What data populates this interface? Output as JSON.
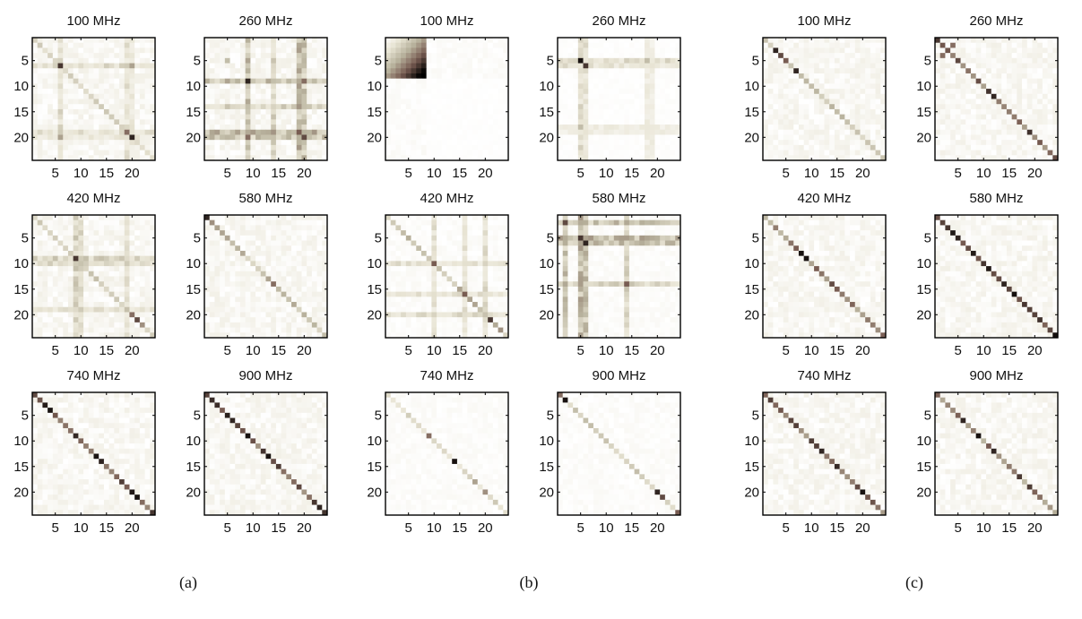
{
  "chart_data": {
    "type": "heatmap",
    "matrix_size": 24,
    "tick_labels": [
      "5",
      "10",
      "15",
      "20"
    ],
    "tick_values": [
      5,
      10,
      15,
      20
    ],
    "colormap": {
      "low": "#ffffff",
      "mid": "#b9b39e",
      "high": "#000000"
    },
    "groups": [
      {
        "label": "(a)",
        "panels": [
          {
            "title": "100 MHz",
            "pattern": "a100"
          },
          {
            "title": "260 MHz",
            "pattern": "a260"
          },
          {
            "title": "420 MHz",
            "pattern": "a420"
          },
          {
            "title": "580 MHz",
            "pattern": "a580"
          },
          {
            "title": "740 MHz",
            "pattern": "a740"
          },
          {
            "title": "900 MHz",
            "pattern": "a900"
          }
        ]
      },
      {
        "label": "(b)",
        "panels": [
          {
            "title": "100 MHz",
            "pattern": "b100"
          },
          {
            "title": "260 MHz",
            "pattern": "b260"
          },
          {
            "title": "420 MHz",
            "pattern": "b420"
          },
          {
            "title": "580 MHz",
            "pattern": "b580"
          },
          {
            "title": "740 MHz",
            "pattern": "b740"
          },
          {
            "title": "900 MHz",
            "pattern": "b900"
          }
        ]
      },
      {
        "label": "(c)",
        "panels": [
          {
            "title": "100 MHz",
            "pattern": "c100"
          },
          {
            "title": "260 MHz",
            "pattern": "c260"
          },
          {
            "title": "420 MHz",
            "pattern": "c420"
          },
          {
            "title": "580 MHz",
            "pattern": "c580"
          },
          {
            "title": "740 MHz",
            "pattern": "c740"
          },
          {
            "title": "900 MHz",
            "pattern": "c900"
          }
        ]
      }
    ]
  }
}
